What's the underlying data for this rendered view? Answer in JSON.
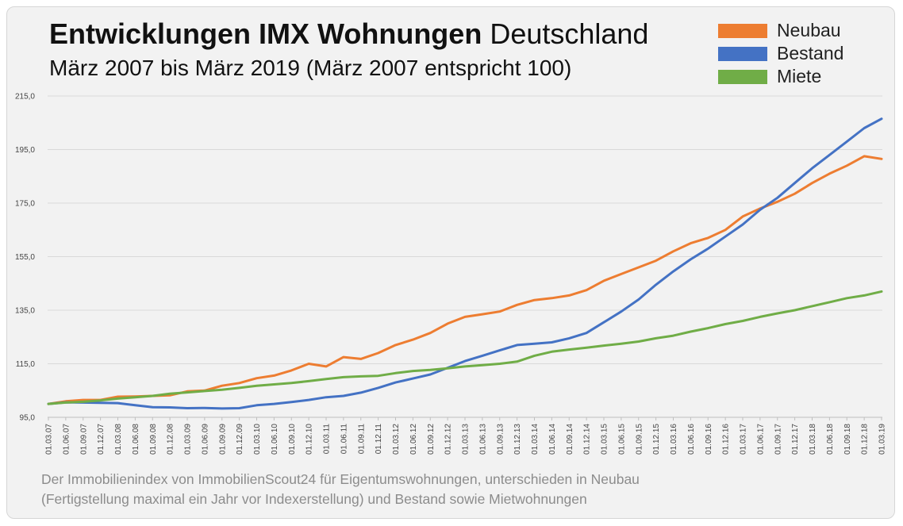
{
  "header": {
    "title_bold": "Entwicklungen IMX Wohnungen",
    "title_rest": "Deutschland",
    "subtitle": "März 2007 bis März 2019 (März 2007 entspricht 100)"
  },
  "footnote": {
    "line1": "Der Immobilienindex von ImmobilienScout24 für Eigentumswohnungen, unterschieden in Neubau",
    "line2": "(Fertigstellung maximal ein Jahr vor Indexerstellung) und Bestand sowie Mietwohnungen"
  },
  "chart_data": {
    "type": "line",
    "title": "Entwicklungen IMX Wohnungen Deutschland",
    "subtitle": "März 2007 bis März 2019 (März 2007 entspricht 100)",
    "xlabel": "",
    "ylabel": "",
    "ylim": [
      95,
      215
    ],
    "yticks": [
      "95,0",
      "115,0",
      "135,0",
      "155,0",
      "175,0",
      "195,0",
      "215,0"
    ],
    "ytick_values": [
      95,
      115,
      135,
      155,
      175,
      195,
      215
    ],
    "x_tick_labels": [
      "01.03.07",
      "01.06.07",
      "01.09.07",
      "01.12.07",
      "01.03.08",
      "01.06.08",
      "01.09.08",
      "01.12.08",
      "01.03.09",
      "01.06.09",
      "01.09.09",
      "01.12.09",
      "01.03.10",
      "01.06.10",
      "01.09.10",
      "01.12.10",
      "01.03.11",
      "01.06.11",
      "01.09.11",
      "01.12.11",
      "01.03.12",
      "01.06.12",
      "01.09.12",
      "01.12.12",
      "01.03.13",
      "01.06.13",
      "01.09.13",
      "01.12.13",
      "01.03.14",
      "01.06.14",
      "01.09.14",
      "01.12.14",
      "01.03.15",
      "01.06.15",
      "01.09.15",
      "01.12.15",
      "01.03.16",
      "01.06.16",
      "01.09.16",
      "01.12.16",
      "01.03.17",
      "01.06.17",
      "01.09.17",
      "01.12.17",
      "01.03.18",
      "01.06.18",
      "01.09.18",
      "01.12.18",
      "01.03.19"
    ],
    "grid": true,
    "legend_position": "top-right",
    "series": [
      {
        "name": "Neubau",
        "color": "#ed7d31",
        "values": [
          100.0,
          101.0,
          101.5,
          101.5,
          102.7,
          102.8,
          103.0,
          103.2,
          104.7,
          105.0,
          106.8,
          107.8,
          109.6,
          110.6,
          112.5,
          115.0,
          114.0,
          117.5,
          116.8,
          119.0,
          122.0,
          124.0,
          126.5,
          130.0,
          132.5,
          133.5,
          134.5,
          137.0,
          138.8,
          139.5,
          140.5,
          142.5,
          146.0,
          148.5,
          151.0,
          153.5,
          157.0,
          160.0,
          162.0,
          165.0,
          170.0,
          173.0,
          175.5,
          178.5,
          182.5,
          186.0,
          189.0,
          192.5,
          191.5
        ]
      },
      {
        "name": "Bestand",
        "color": "#4472c4",
        "values": [
          100.0,
          100.6,
          100.5,
          100.4,
          100.3,
          99.5,
          98.8,
          98.7,
          98.4,
          98.5,
          98.3,
          98.4,
          99.5,
          100.0,
          100.7,
          101.5,
          102.5,
          103.0,
          104.2,
          106.0,
          108.0,
          109.5,
          111.0,
          113.5,
          116.0,
          118.0,
          120.0,
          122.0,
          122.5,
          123.0,
          124.5,
          126.5,
          130.5,
          134.5,
          139.0,
          144.5,
          149.5,
          154.0,
          158.0,
          162.5,
          167.0,
          172.5,
          177.0,
          182.5,
          188.0,
          193.0,
          198.0,
          203.0,
          206.5
        ]
      },
      {
        "name": "Miete",
        "color": "#70ad47",
        "values": [
          100.0,
          100.5,
          100.8,
          101.3,
          102.0,
          102.5,
          103.0,
          103.8,
          104.3,
          104.8,
          105.3,
          106.0,
          106.8,
          107.3,
          107.8,
          108.5,
          109.3,
          110.0,
          110.3,
          110.5,
          111.5,
          112.3,
          112.7,
          113.3,
          114.0,
          114.5,
          115.0,
          115.8,
          118.0,
          119.5,
          120.3,
          121.0,
          121.8,
          122.5,
          123.3,
          124.5,
          125.5,
          127.0,
          128.3,
          129.8,
          131.0,
          132.5,
          133.8,
          135.0,
          136.5,
          138.0,
          139.5,
          140.5,
          142.0
        ]
      }
    ]
  }
}
